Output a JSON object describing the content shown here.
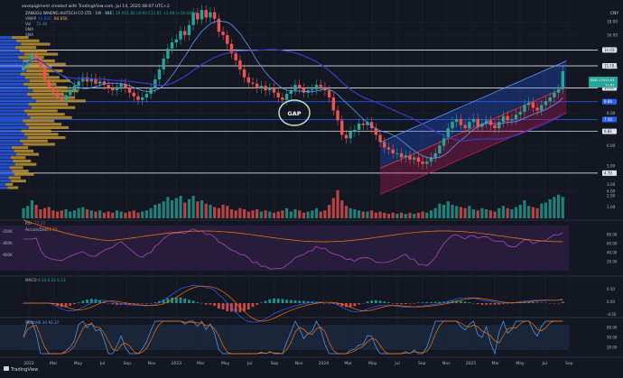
{
  "header": {
    "caption": "savepigiment created with TradingView.com, Jul 14, 2025 08:07 UTC+2",
    "currency": "CNY",
    "brand": "TradingView",
    "symbol_line": "ZANGGU WAKING HUITECH CO LTD · 1W · SSE",
    "ohlc": "O11.10 H11.82 L9.93 C11.61 +1.68 (+16.93%)",
    "vwap_label": "VWAP",
    "vwap_value": "10.856",
    "vwap_value2": "84.656",
    "vol_label": "Vol",
    "vol_value": "72.48",
    "sma_labels": [
      "SMA",
      "SMA"
    ]
  },
  "colors": {
    "bg": "#131722",
    "up": "#26a69a",
    "down": "#ef5350",
    "grid": "#2a2e39",
    "sma_fast": "#5b9cf6",
    "sma_slow": "#3f38c9",
    "vp_up": "#2962ff",
    "vp_down": "#d4a536",
    "channel_up": "#2962ff",
    "channel_down": "#c2185b",
    "gap": "#c8e6c9"
  },
  "annotation": {
    "gap": "GAP"
  },
  "chart_data": {
    "type": "candlestick",
    "interval": "1W",
    "x_ticks": [
      "2022",
      "Mar",
      "May",
      "Jul",
      "Sep",
      "Nov",
      "2023",
      "Mar",
      "May",
      "Jul",
      "Sep",
      "Nov",
      "2024",
      "Mar",
      "May",
      "Jul",
      "Sep",
      "Nov",
      "2025",
      "Mar",
      "May",
      "Jul",
      "Sep"
    ],
    "price_axis": {
      "scale": "log",
      "ticks": [
        4.0,
        5.0,
        6.0,
        8.0,
        10.0,
        12.0,
        14.0,
        16.0,
        18.0
      ]
    },
    "horizontal_levels": [
      {
        "price": "14.03",
        "color": "#ffffff"
      },
      {
        "price": "12.18",
        "color": "#ffffff"
      },
      {
        "price": "10.01",
        "color": "#ffffff"
      },
      {
        "price": "8.86",
        "color": "#2962ff"
      },
      {
        "price": "7.56",
        "color": "#2962ff"
      },
      {
        "price": "6.81",
        "color": "#ffffff"
      },
      {
        "price": "4.70",
        "color": "#ffffff"
      }
    ],
    "last_price_badge": {
      "value": "11.61",
      "time": "68D 17h"
    },
    "last_price_badge2": "11.61",
    "weekly_closes": [
      12.2,
      12.8,
      13.5,
      13.0,
      12.0,
      10.8,
      10.1,
      9.6,
      9.2,
      9.0,
      9.4,
      9.8,
      10.2,
      10.6,
      11.0,
      10.6,
      10.9,
      10.4,
      10.6,
      10.3,
      10.0,
      9.8,
      10.1,
      10.4,
      10.0,
      9.6,
      9.3,
      9.0,
      9.2,
      9.5,
      10.0,
      10.8,
      11.8,
      13.0,
      14.2,
      15.0,
      15.4,
      16.6,
      16.0,
      17.5,
      19.5,
      18.4,
      20.0,
      18.7,
      19.6,
      18.5,
      16.5,
      16.0,
      14.8,
      13.6,
      12.8,
      11.8,
      11.0,
      10.5,
      10.4,
      10.0,
      10.2,
      9.8,
      10.0,
      9.6,
      9.2,
      9.0,
      9.5,
      9.8,
      10.3,
      10.0,
      9.6,
      9.8,
      9.9,
      10.3,
      10.1,
      9.8,
      9.2,
      8.2,
      7.5,
      6.6,
      6.4,
      6.8,
      6.9,
      7.3,
      7.2,
      7.4,
      7.0,
      6.6,
      6.2,
      5.9,
      5.8,
      5.6,
      5.6,
      5.4,
      5.5,
      5.3,
      5.4,
      5.2,
      5.1,
      5.2,
      5.4,
      5.6,
      6.0,
      6.4,
      7.0,
      7.4,
      7.6,
      7.2,
      7.0,
      7.4,
      7.6,
      7.1,
      7.3,
      7.5,
      7.2,
      7.0,
      7.4,
      7.8,
      7.5,
      7.6,
      7.9,
      8.1,
      8.6,
      8.8,
      8.4,
      8.2,
      8.6,
      8.9,
      9.2,
      9.6,
      9.9,
      11.61
    ],
    "weekly_volume": [
      0.9,
      1.1,
      1.6,
      1.2,
      0.8,
      0.9,
      1.0,
      0.7,
      0.6,
      0.7,
      0.8,
      0.6,
      0.7,
      0.9,
      1.0,
      0.8,
      0.7,
      0.6,
      0.7,
      0.5,
      0.6,
      0.5,
      0.7,
      0.6,
      0.5,
      0.6,
      0.7,
      0.5,
      0.6,
      0.7,
      0.9,
      1.2,
      1.3,
      1.5,
      1.9,
      1.6,
      1.8,
      2.0,
      1.4,
      1.7,
      2.0,
      1.5,
      1.6,
      1.3,
      1.2,
      1.0,
      0.9,
      1.2,
      1.1,
      0.8,
      0.7,
      0.9,
      0.8,
      0.6,
      0.7,
      0.8,
      0.6,
      0.7,
      0.6,
      0.5,
      0.6,
      0.7,
      0.9,
      0.6,
      0.8,
      0.7,
      0.5,
      0.6,
      0.7,
      0.9,
      0.6,
      0.7,
      1.2,
      1.8,
      2.5,
      1.6,
      1.1,
      0.9,
      0.8,
      0.7,
      0.6,
      0.6,
      0.7,
      0.5,
      0.6,
      0.5,
      0.4,
      0.5,
      0.4,
      0.5,
      0.4,
      0.5,
      0.4,
      0.5,
      0.6,
      0.5,
      0.7,
      0.9,
      1.3,
      1.2,
      1.5,
      1.2,
      1.1,
      1.0,
      0.9,
      1.1,
      0.8,
      0.7,
      0.9,
      0.8,
      0.7,
      0.6,
      0.9,
      1.1,
      0.9,
      0.8,
      1.0,
      1.2,
      1.6,
      1.1,
      1.0,
      0.9,
      1.3,
      1.4,
      1.7,
      1.9,
      2.1,
      1.9
    ],
    "volume_axis_ticks": [
      1.0,
      2.0,
      3.0
    ],
    "rsi_panel": {
      "label": "RSI",
      "values_text": "77.25",
      "sub_label": "Accum/Dist",
      "ad_text": "-61.71",
      "axis": [
        "-200K",
        "-400K",
        "-600K"
      ],
      "axis_right": [
        "80.00",
        "60.00",
        "40.00",
        "20.00"
      ]
    },
    "macd_panel": {
      "label": "MACD",
      "values_text": "0.33  0.21  0.12",
      "axis": [
        "0.50",
        "0.00",
        "-0.50"
      ]
    },
    "stoch_panel": {
      "label": "Stoch",
      "values_text": "96.34  92.37",
      "axis": [
        "80.00",
        "50.00",
        "20.00"
      ]
    }
  }
}
